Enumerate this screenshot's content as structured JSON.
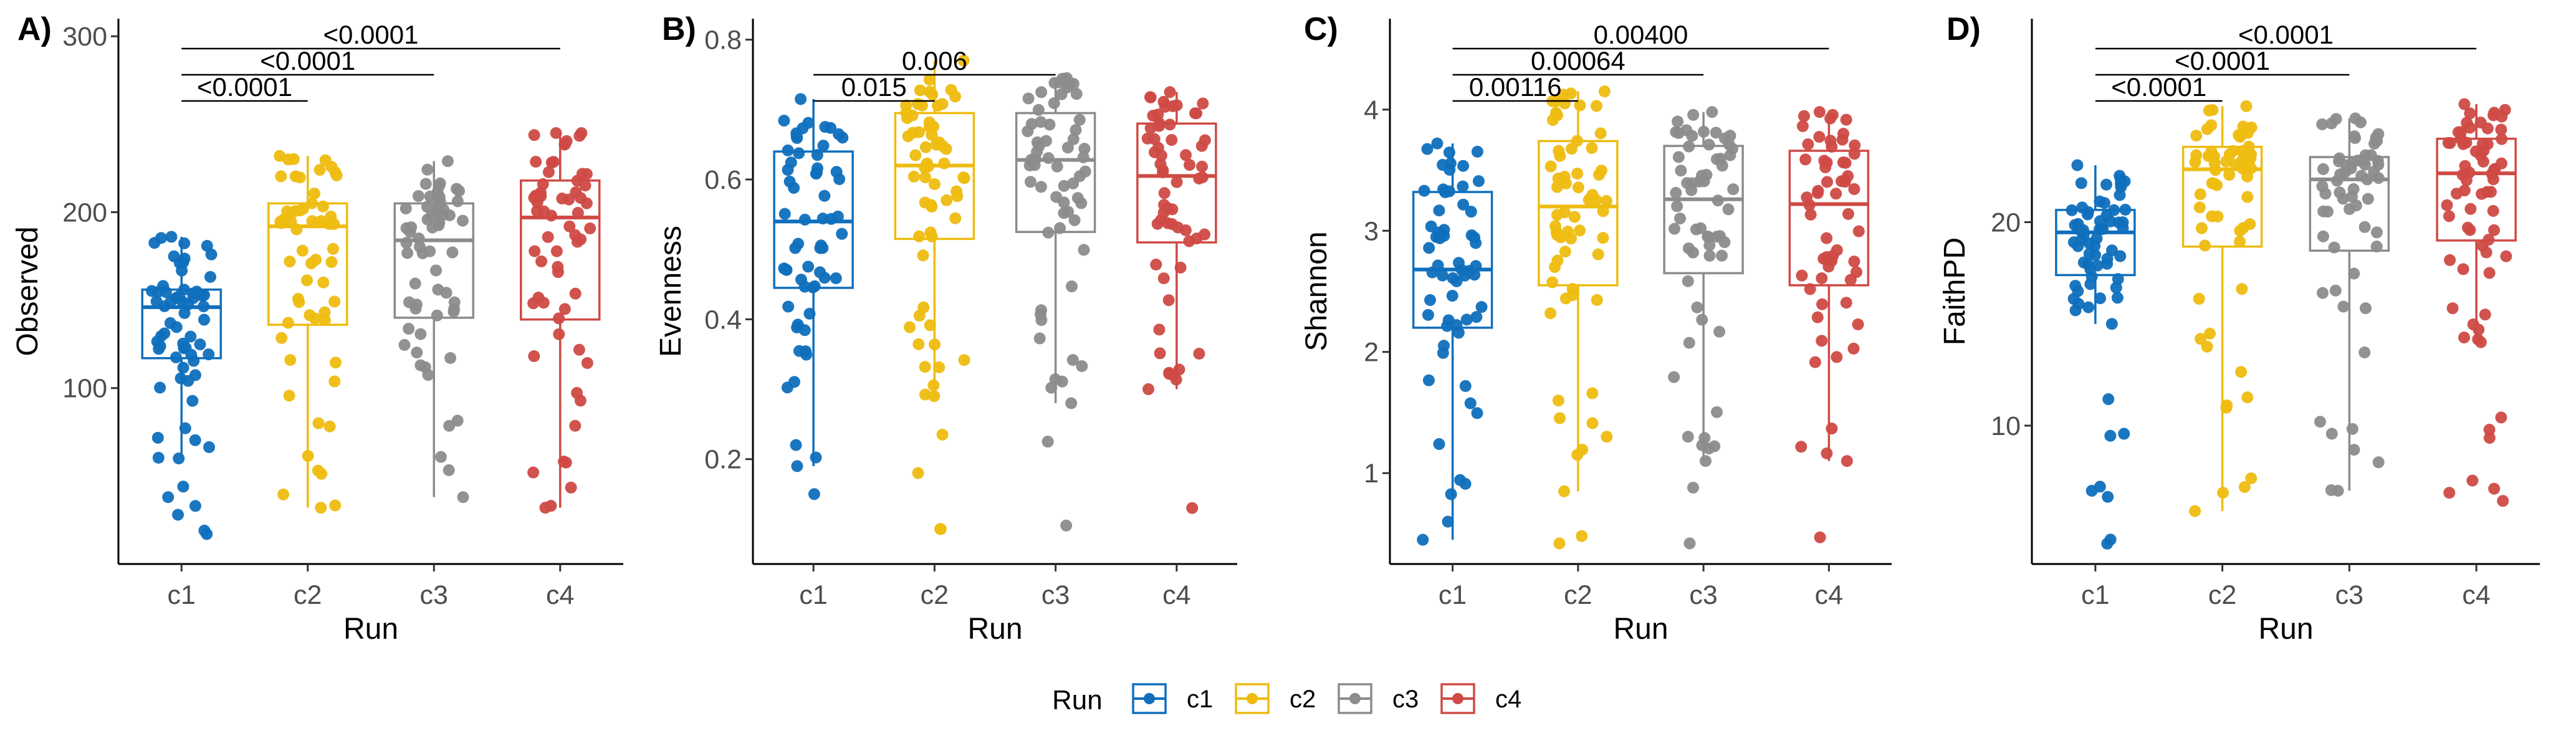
{
  "colors": {
    "c1": "#0f6fbd",
    "c2": "#eebc10",
    "c3": "#8c8c8c",
    "c4": "#cf4a45"
  },
  "legend": {
    "title": "Run",
    "placement": "bottom",
    "entries": [
      "c1",
      "c2",
      "c3",
      "c4"
    ]
  },
  "chart_data": [
    {
      "type": "box",
      "panel_label": "A)",
      "xlabel": "Run",
      "ylabel": "Observed",
      "categories": [
        "c1",
        "c2",
        "c3",
        "c4"
      ],
      "ylim": [
        0,
        310
      ],
      "yticks": [
        100,
        200,
        300
      ],
      "boxes": [
        {
          "min": 60,
          "q1": 117,
          "median": 146,
          "q3": 156,
          "max": 186,
          "outliers_low": [
            17,
            19,
            28,
            33,
            38,
            44
          ]
        },
        {
          "min": 32,
          "q1": 136,
          "median": 192,
          "q3": 205,
          "max": 232,
          "outliers_low": []
        },
        {
          "min": 38,
          "q1": 140,
          "median": 184,
          "q3": 205,
          "max": 229,
          "outliers_low": []
        },
        {
          "min": 32,
          "q1": 139,
          "median": 197,
          "q3": 218,
          "max": 245,
          "outliers_low": []
        }
      ],
      "comparisons": [
        {
          "from": "c1",
          "to": "c2",
          "label": "<0.0001"
        },
        {
          "from": "c1",
          "to": "c3",
          "label": "<0.0001"
        },
        {
          "from": "c1",
          "to": "c4",
          "label": "<0.0001"
        }
      ]
    },
    {
      "type": "box",
      "panel_label": "B)",
      "xlabel": "Run",
      "ylabel": "Evenness",
      "categories": [
        "c1",
        "c2",
        "c3",
        "c4"
      ],
      "ylim": [
        0.05,
        0.83
      ],
      "yticks": [
        0.2,
        0.4,
        0.6,
        0.8
      ],
      "boxes": [
        {
          "min": 0.19,
          "q1": 0.445,
          "median": 0.54,
          "q3": 0.64,
          "max": 0.715,
          "outliers_low": [
            0.15
          ]
        },
        {
          "min": 0.29,
          "q1": 0.515,
          "median": 0.62,
          "q3": 0.695,
          "max": 0.77,
          "outliers_low": [
            0.1,
            0.1,
            0.18,
            0.235
          ]
        },
        {
          "min": 0.28,
          "q1": 0.525,
          "median": 0.628,
          "q3": 0.695,
          "max": 0.745,
          "outliers_low": [
            0.105,
            0.225
          ]
        },
        {
          "min": 0.3,
          "q1": 0.51,
          "median": 0.605,
          "q3": 0.68,
          "max": 0.725,
          "outliers_low": [
            0.13
          ]
        }
      ],
      "comparisons": [
        {
          "from": "c1",
          "to": "c2",
          "label": "0.015"
        },
        {
          "from": "c1",
          "to": "c3",
          "label": "0.006"
        }
      ]
    },
    {
      "type": "box",
      "panel_label": "C)",
      "xlabel": "Run",
      "ylabel": "Shannon",
      "categories": [
        "c1",
        "c2",
        "c3",
        "c4"
      ],
      "ylim": [
        0.25,
        4.75
      ],
      "yticks": [
        1,
        2,
        3,
        4
      ],
      "boxes": [
        {
          "min": 0.45,
          "q1": 2.2,
          "median": 2.68,
          "q3": 3.32,
          "max": 3.72,
          "outliers_low": []
        },
        {
          "min": 0.85,
          "q1": 2.55,
          "median": 3.2,
          "q3": 3.74,
          "max": 4.15,
          "outliers_low": [
            0.42,
            0.48
          ]
        },
        {
          "min": 1.1,
          "q1": 2.65,
          "median": 3.26,
          "q3": 3.7,
          "max": 3.98,
          "outliers_low": [
            0.42,
            0.88
          ]
        },
        {
          "min": 1.1,
          "q1": 2.55,
          "median": 3.22,
          "q3": 3.66,
          "max": 3.98,
          "outliers_low": [
            0.47
          ]
        }
      ],
      "comparisons": [
        {
          "from": "c1",
          "to": "c2",
          "label": "0.00116"
        },
        {
          "from": "c1",
          "to": "c3",
          "label": "0.00064"
        },
        {
          "from": "c1",
          "to": "c4",
          "label": "0.00400"
        }
      ]
    },
    {
      "type": "box",
      "panel_label": "D)",
      "xlabel": "Run",
      "ylabel": "FaithPD",
      "categories": [
        "c1",
        "c2",
        "c3",
        "c4"
      ],
      "ylim": [
        3.2,
        30
      ],
      "yticks": [
        10,
        20
      ],
      "boxes": [
        {
          "min": 15,
          "q1": 17.4,
          "median": 19.5,
          "q3": 20.6,
          "max": 22.8,
          "outliers_low": [
            4.2,
            4.4,
            6.5,
            6.8,
            7.0,
            9.5,
            9.6,
            11.3
          ]
        },
        {
          "min": 5.8,
          "q1": 18.8,
          "median": 22.6,
          "q3": 23.7,
          "max": 25.7,
          "outliers_low": []
        },
        {
          "min": 6.8,
          "q1": 18.6,
          "median": 22.1,
          "q3": 23.2,
          "max": 25.1,
          "outliers_low": []
        },
        {
          "min": 14.1,
          "q1": 19.1,
          "median": 22.4,
          "q3": 24.1,
          "max": 25.8,
          "outliers_low": [
            6.3,
            6.7,
            6.9,
            7.3,
            9.4,
            9.8,
            10.4
          ]
        }
      ],
      "comparisons": [
        {
          "from": "c1",
          "to": "c2",
          "label": "<0.0001"
        },
        {
          "from": "c1",
          "to": "c3",
          "label": "<0.0001"
        },
        {
          "from": "c1",
          "to": "c4",
          "label": "<0.0001"
        }
      ]
    }
  ]
}
